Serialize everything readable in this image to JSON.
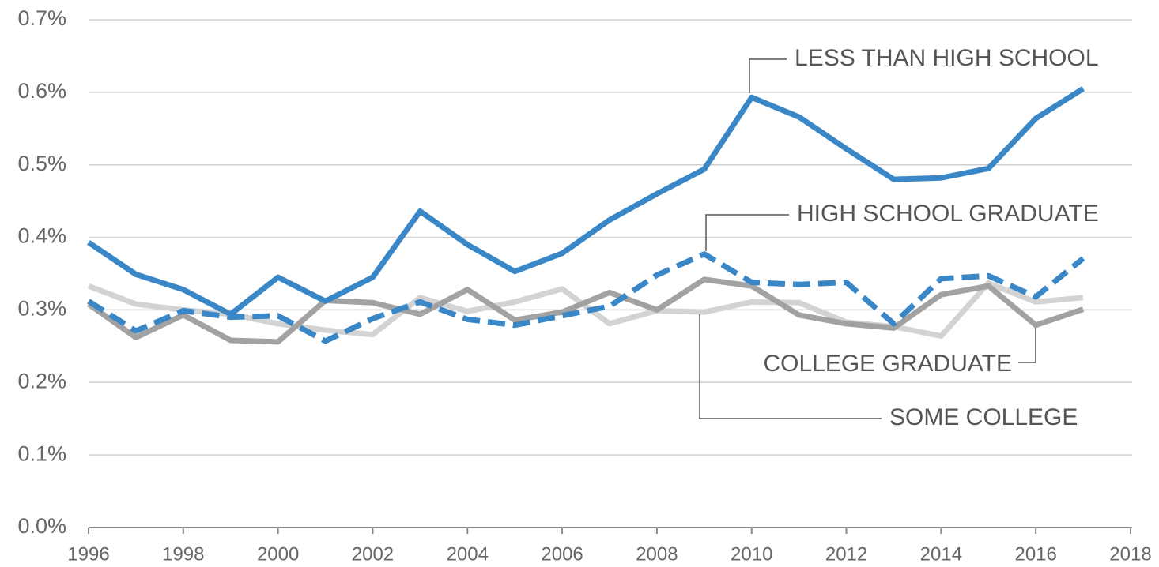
{
  "chart_data": {
    "type": "line",
    "x": [
      1996,
      1997,
      1998,
      1999,
      2000,
      2001,
      2002,
      2003,
      2004,
      2005,
      2006,
      2007,
      2008,
      2009,
      2010,
      2011,
      2012,
      2013,
      2014,
      2015,
      2016,
      2017
    ],
    "series": [
      {
        "name": "SOME COLLEGE",
        "color": "#d3d3d3",
        "dashed": false,
        "values": [
          0.333,
          0.308,
          0.3,
          0.294,
          0.281,
          0.272,
          0.266,
          0.317,
          0.298,
          0.311,
          0.329,
          0.281,
          0.299,
          0.297,
          0.311,
          0.31,
          0.283,
          0.277,
          0.264,
          0.337,
          0.311,
          0.317
        ]
      },
      {
        "name": "COLLEGE GRADUATE",
        "color": "#a2a2a2",
        "dashed": false,
        "values": [
          0.308,
          0.262,
          0.293,
          0.258,
          0.256,
          0.313,
          0.31,
          0.294,
          0.328,
          0.286,
          0.297,
          0.324,
          0.3,
          0.342,
          0.333,
          0.293,
          0.281,
          0.275,
          0.321,
          0.333,
          0.279,
          0.301
        ]
      },
      {
        "name": "HIGH SCHOOL GRADUATE",
        "color": "#3a87c8",
        "dashed": true,
        "values": [
          0.312,
          0.271,
          0.299,
          0.29,
          0.292,
          0.257,
          0.288,
          0.311,
          0.287,
          0.279,
          0.292,
          0.305,
          0.348,
          0.377,
          0.338,
          0.335,
          0.338,
          0.281,
          0.343,
          0.347,
          0.318,
          0.371
        ]
      },
      {
        "name": "LESS THAN HIGH SCHOOL",
        "color": "#3a87c8",
        "dashed": false,
        "values": [
          0.393,
          0.349,
          0.328,
          0.294,
          0.345,
          0.312,
          0.345,
          0.436,
          0.39,
          0.353,
          0.378,
          0.424,
          0.46,
          0.494,
          0.593,
          0.566,
          0.522,
          0.48,
          0.482,
          0.495,
          0.564,
          0.605
        ]
      }
    ],
    "xlim": [
      1996,
      2018
    ],
    "xticks": [
      1996,
      1998,
      2000,
      2002,
      2004,
      2006,
      2008,
      2010,
      2012,
      2014,
      2016,
      2018
    ],
    "ylim": [
      0,
      0.7
    ],
    "yticks": [
      {
        "value": 0,
        "label": "0.0%"
      },
      {
        "value": 0.1,
        "label": "0.1%"
      },
      {
        "value": 0.2,
        "label": "0.2%"
      },
      {
        "value": 0.3,
        "label": "0.3%"
      },
      {
        "value": 0.4,
        "label": "0.4%"
      },
      {
        "value": 0.5,
        "label": "0.5%"
      },
      {
        "value": 0.6,
        "label": "0.6%"
      },
      {
        "value": 0.7,
        "label": "0.7%"
      }
    ],
    "grid": true
  }
}
